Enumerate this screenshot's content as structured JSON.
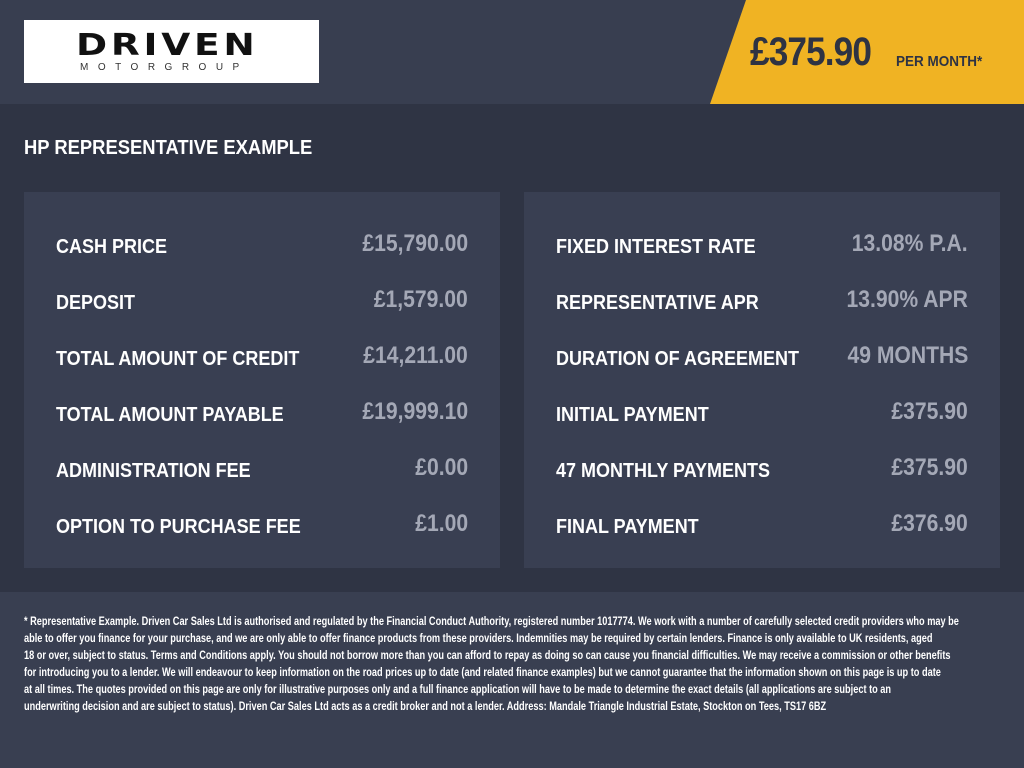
{
  "logo": {
    "word": "DRIVEN",
    "sub": "MOTORGROUP"
  },
  "header": {
    "price": "£375.90",
    "per_month": "PER MONTH*"
  },
  "title": "HP REPRESENTATIVE EXAMPLE",
  "left": [
    {
      "label": "CASH PRICE",
      "value": "£15,790.00"
    },
    {
      "label": "DEPOSIT",
      "value": "£1,579.00"
    },
    {
      "label": "TOTAL AMOUNT OF CREDIT",
      "value": "£14,211.00"
    },
    {
      "label": "TOTAL AMOUNT PAYABLE",
      "value": "£19,999.10"
    },
    {
      "label": "ADMINISTRATION FEE",
      "value": "£0.00"
    },
    {
      "label": "OPTION TO PURCHASE FEE",
      "value": "£1.00"
    }
  ],
  "right": [
    {
      "label": "FIXED INTEREST RATE",
      "value": "13.08% P.A."
    },
    {
      "label": "REPRESENTATIVE APR",
      "value": "13.90% APR"
    },
    {
      "label": "DURATION OF AGREEMENT",
      "value": "49 MONTHS"
    },
    {
      "label": "INITIAL PAYMENT",
      "value": "£375.90"
    },
    {
      "label": "47 MONTHLY PAYMENTS",
      "value": "£375.90"
    },
    {
      "label": "FINAL PAYMENT",
      "value": "£376.90"
    }
  ],
  "footer": [
    "* Representative Example. Driven Car Sales Ltd is authorised and regulated by the Financial Conduct Authority, registered number 1017774. We work with a number of carefully selected credit providers who may be",
    "able to offer you finance for your purchase, and we are only able to offer finance products from these providers. Indemnities may be required by certain lenders. Finance is only available to UK residents, aged",
    "18 or over, subject to status. Terms and Conditions apply. You should not borrow more than you can afford to repay as doing so can cause you financial difficulties. We may receive a commission or other benefits",
    "for introducing you to a lender. We will endeavour to keep information on the road prices up to date (and related finance examples) but we cannot guarantee that the information shown on this page is up to date",
    "at all times. The quotes provided on this page are only for illustrative purposes only and a full finance application will have to be made to determine the exact details (all applications are subject to an",
    "underwriting decision and are subject to status). Driven Car Sales Ltd acts as a credit broker and not a lender. Address: Mandale Triangle Industrial Estate, Stockton on Tees, TS17 6BZ"
  ],
  "colors": {
    "accent": "#f0b323",
    "background": "#2f3444",
    "panel": "#393f52"
  }
}
